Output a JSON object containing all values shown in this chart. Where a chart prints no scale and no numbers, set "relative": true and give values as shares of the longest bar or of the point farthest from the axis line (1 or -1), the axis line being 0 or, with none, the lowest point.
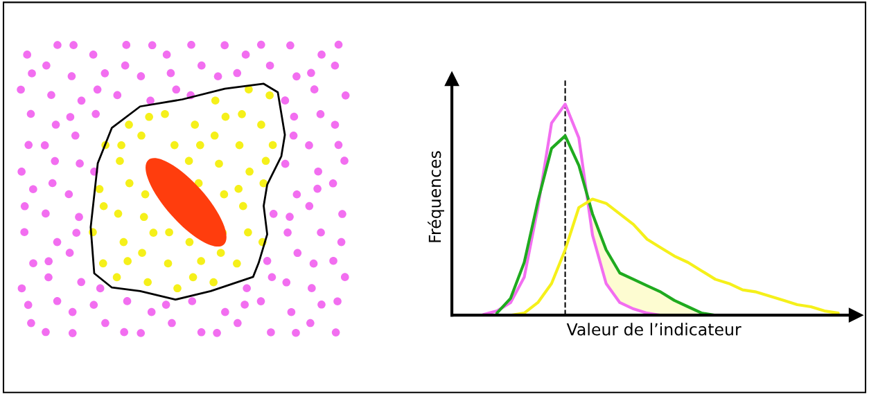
{
  "chart_data": {
    "type": "line",
    "relative": true,
    "xlabel": "Valeur de l’indicateur",
    "ylabel": "Fréquences",
    "categories": [
      null,
      null,
      null,
      null,
      null,
      null,
      null,
      null,
      null,
      null,
      null,
      null,
      null,
      null,
      null,
      null,
      null,
      null,
      null,
      null,
      null,
      null,
      null,
      null,
      null,
      null,
      null,
      null,
      null,
      null
    ],
    "series": [
      {
        "color": "#f26ef0",
        "values": [
          null,
          null,
          0.003,
          0.02,
          0.06,
          0.18,
          0.51,
          0.91,
          1.0,
          0.84,
          0.38,
          0.15,
          0.06,
          0.03,
          0.01,
          0,
          0,
          null,
          null,
          null,
          null,
          null,
          null,
          null,
          null,
          null,
          null,
          null,
          null,
          null
        ]
      },
      {
        "color": "#1faa1f",
        "values": [
          null,
          null,
          null,
          0.01,
          0.08,
          0.25,
          0.54,
          0.79,
          0.85,
          0.71,
          0.48,
          0.31,
          0.2,
          0.17,
          0.14,
          0.11,
          0.07,
          0.04,
          0.01,
          0,
          0,
          null,
          null,
          null,
          null,
          null,
          null,
          null,
          null,
          null
        ]
      },
      {
        "color": "#f5f01a",
        "values": [
          null,
          null,
          null,
          0,
          0,
          0.01,
          0.06,
          0.15,
          0.31,
          0.51,
          0.55,
          0.53,
          0.48,
          0.43,
          0.36,
          0.32,
          0.28,
          0.25,
          0.21,
          0.17,
          0.15,
          0.12,
          0.11,
          0.09,
          0.07,
          0.05,
          0.04,
          0.02,
          0.01,
          null
        ],
        "lower": [
          null,
          null,
          null,
          null,
          null,
          null,
          null,
          null,
          null,
          null,
          0.38,
          0.15,
          0.06,
          0.03,
          0.01,
          0,
          0,
          0,
          0,
          0,
          null,
          null,
          null,
          null,
          null,
          null,
          null,
          null,
          null,
          null
        ],
        "upper": [
          null,
          null,
          null,
          null,
          null,
          null,
          null,
          null,
          null,
          null,
          0.48,
          0.31,
          0.2,
          0.17,
          0.14,
          0.11,
          0.07,
          0.04,
          0.01,
          0,
          null,
          null,
          null,
          null,
          null,
          null,
          null,
          null,
          null,
          null
        ]
      }
    ],
    "grid": false,
    "legend": false,
    "tick_labels": false
  }
}
